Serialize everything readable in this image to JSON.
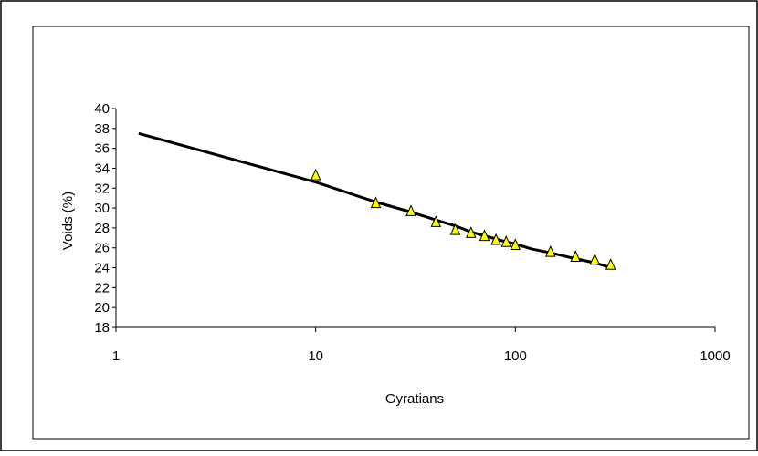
{
  "chart_data": {
    "type": "scatter",
    "xlabel": "Gyratians",
    "ylabel": "Voids  (%)",
    "x_scale": "log",
    "xlim": [
      1,
      1000
    ],
    "ylim": [
      18,
      40
    ],
    "x_ticks": [
      1,
      10,
      100,
      1000
    ],
    "y_ticks": [
      18,
      20,
      22,
      24,
      26,
      28,
      30,
      32,
      34,
      36,
      38,
      40
    ],
    "grid": false,
    "legend": "none",
    "series": [
      {
        "kind": "points",
        "marker": "triangle",
        "color": "#ffff00",
        "edge_color": "#000000",
        "x": [
          10,
          20,
          30,
          40,
          50,
          60,
          70,
          80,
          90,
          100,
          150,
          200,
          250,
          300
        ],
        "y": [
          33.3,
          30.5,
          29.7,
          28.6,
          27.8,
          27.5,
          27.2,
          26.8,
          26.6,
          26.3,
          25.6,
          25.1,
          24.8,
          24.3
        ]
      },
      {
        "kind": "line",
        "color": "#000000",
        "x": [
          1.3,
          10,
          20,
          30,
          40,
          50,
          60,
          70,
          80,
          90,
          100,
          120,
          150,
          200,
          250,
          300
        ],
        "y": [
          37.5,
          32.6,
          30.6,
          29.6,
          28.8,
          28.2,
          27.6,
          27.2,
          26.9,
          26.6,
          26.4,
          25.9,
          25.5,
          24.9,
          24.5,
          24.0
        ]
      }
    ]
  }
}
